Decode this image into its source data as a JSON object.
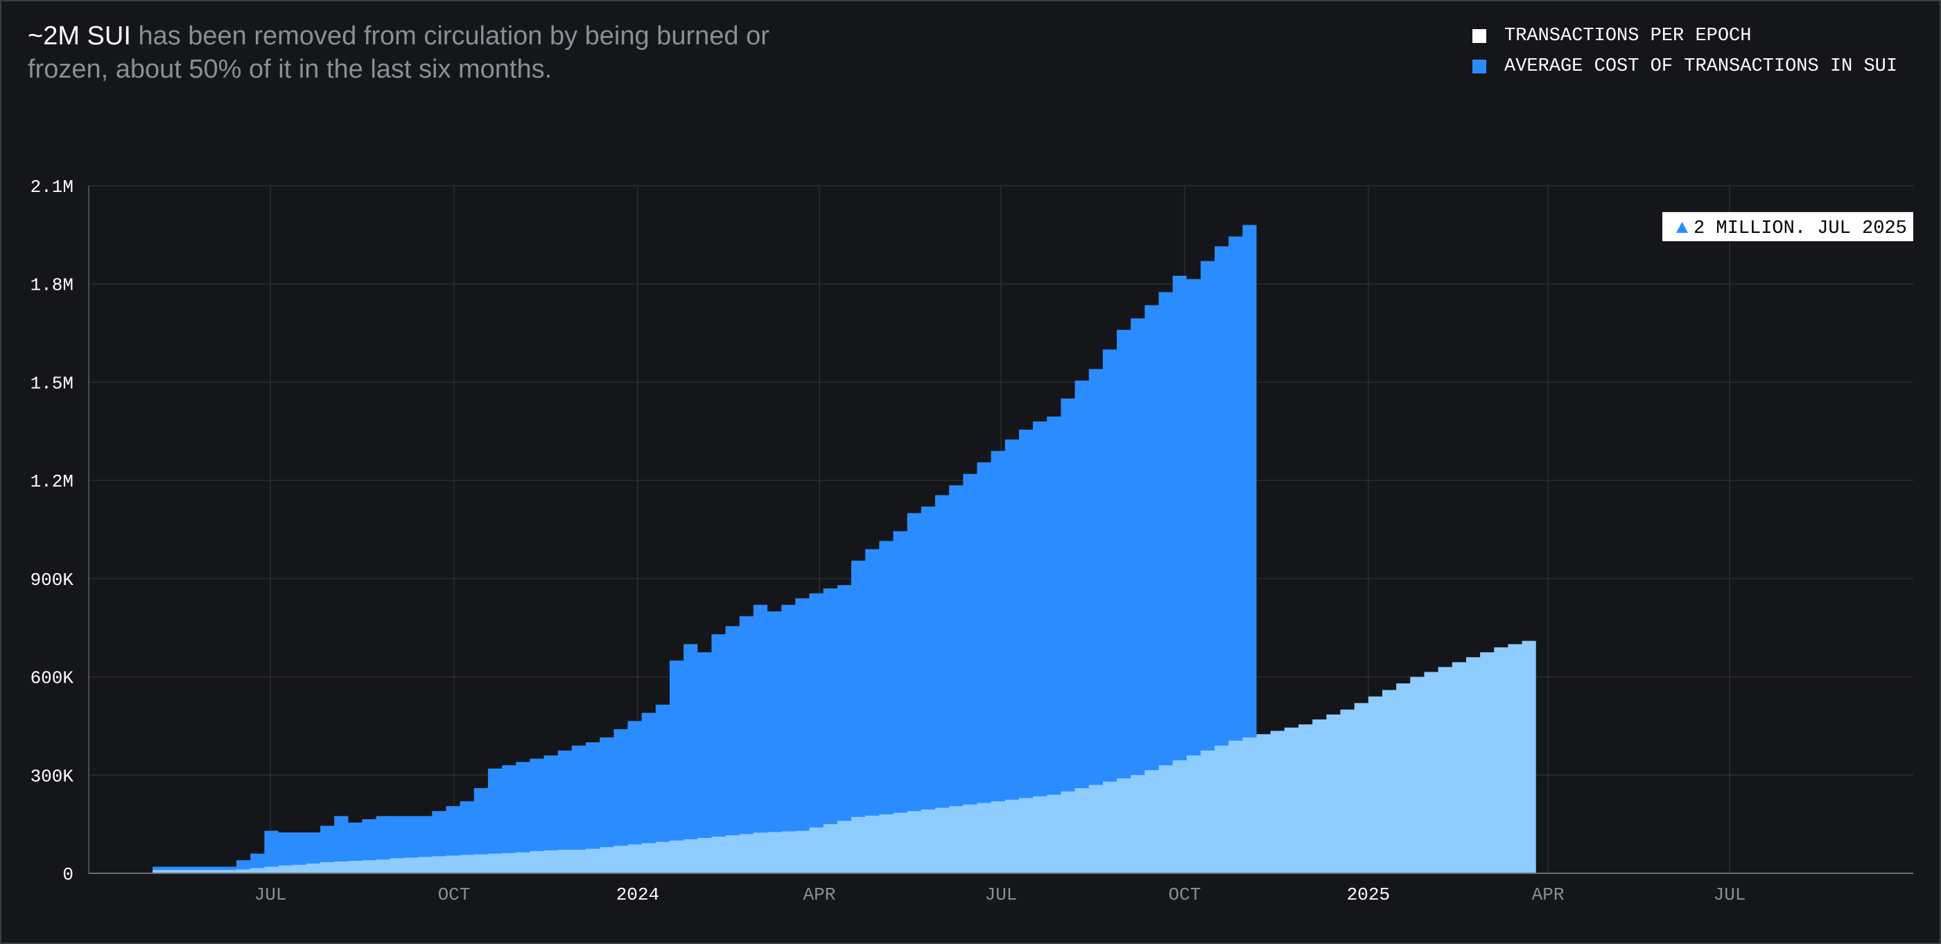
{
  "header": {
    "headline_highlight": "~2M SUI",
    "headline_rest": " has been removed from circulation by being burned or frozen, about 50% of it in the last six months."
  },
  "legend": [
    {
      "label": "TRANSACTIONS PER EPOCH",
      "color": "#ffffff"
    },
    {
      "label": "AVERAGE COST OF TRANSACTIONS IN SUI",
      "color": "#2b8cff"
    }
  ],
  "callout": {
    "text": "2 MILLION. JUL 2025",
    "icon": "triangle-up-icon"
  },
  "chart_data": {
    "type": "area",
    "title": "",
    "xlabel": "",
    "ylabel": "",
    "ylim": [
      0,
      2100000
    ],
    "y_ticks": [
      {
        "value": 0,
        "label": "0"
      },
      {
        "value": 300000,
        "label": "300K"
      },
      {
        "value": 600000,
        "label": "600K"
      },
      {
        "value": 900000,
        "label": "900K"
      },
      {
        "value": 1200000,
        "label": "1.2M"
      },
      {
        "value": 1500000,
        "label": "1.5M"
      },
      {
        "value": 1800000,
        "label": "1.8M"
      },
      {
        "value": 2100000,
        "label": "2.1M"
      }
    ],
    "x_ticks": [
      {
        "label": "JUL",
        "date": "2023-07-01",
        "emphasis": false
      },
      {
        "label": "OCT",
        "date": "2023-10-01",
        "emphasis": false
      },
      {
        "label": "2024",
        "date": "2024-01-01",
        "emphasis": true
      },
      {
        "label": "APR",
        "date": "2024-04-01",
        "emphasis": false
      },
      {
        "label": "JUL",
        "date": "2024-07-01",
        "emphasis": false
      },
      {
        "label": "OCT",
        "date": "2024-10-01",
        "emphasis": false
      },
      {
        "label": "2025",
        "date": "2025-01-01",
        "emphasis": true
      },
      {
        "label": "APR",
        "date": "2025-04-01",
        "emphasis": false
      },
      {
        "label": "JUL",
        "date": "2025-07-01",
        "emphasis": false
      }
    ],
    "x_range": [
      "2023-04-01",
      "2025-10-01"
    ],
    "grid": true,
    "legend_position": "top-right",
    "step_start": "2023-05-03",
    "step_days": 7,
    "series": [
      {
        "name": "TRANSACTIONS PER EPOCH",
        "color": "#8ecbff",
        "values": [
          10000,
          10000,
          10000,
          10000,
          10000,
          10000,
          12000,
          16000,
          20000,
          24000,
          26000,
          30000,
          34000,
          36000,
          38000,
          40000,
          42000,
          46000,
          48000,
          50000,
          52000,
          54000,
          56000,
          58000,
          60000,
          62000,
          64000,
          68000,
          70000,
          72000,
          72000,
          75000,
          80000,
          84000,
          88000,
          92000,
          96000,
          100000,
          104000,
          108000,
          112000,
          116000,
          120000,
          124000,
          126000,
          128000,
          130000,
          140000,
          150000,
          160000,
          172000,
          176000,
          180000,
          185000,
          190000,
          195000,
          200000,
          205000,
          210000,
          215000,
          220000,
          225000,
          230000,
          235000,
          240000,
          250000,
          260000,
          270000,
          280000,
          290000,
          300000,
          315000,
          330000,
          345000,
          360000,
          375000,
          390000,
          405000,
          415000,
          425000,
          435000,
          445000,
          455000,
          470000,
          485000,
          500000,
          520000,
          540000,
          560000,
          580000,
          600000,
          615000,
          630000,
          645000,
          660000,
          675000,
          690000,
          700000,
          710000
        ]
      },
      {
        "name": "AVERAGE COST OF TRANSACTIONS IN SUI",
        "color": "#2b8cff",
        "values": [
          20000,
          20000,
          20000,
          20000,
          20000,
          20000,
          40000,
          60000,
          130000,
          125000,
          125000,
          125000,
          145000,
          175000,
          155000,
          165000,
          175000,
          175000,
          175000,
          175000,
          190000,
          205000,
          220000,
          260000,
          320000,
          330000,
          340000,
          350000,
          360000,
          375000,
          390000,
          400000,
          415000,
          440000,
          465000,
          490000,
          515000,
          650000,
          700000,
          675000,
          730000,
          755000,
          785000,
          820000,
          800000,
          820000,
          840000,
          855000,
          870000,
          880000,
          955000,
          990000,
          1015000,
          1045000,
          1100000,
          1120000,
          1155000,
          1185000,
          1220000,
          1255000,
          1290000,
          1325000,
          1355000,
          1380000,
          1395000,
          1450000,
          1505000,
          1540000,
          1600000,
          1660000,
          1695000,
          1735000,
          1775000,
          1825000,
          1815000,
          1870000,
          1915000,
          1945000,
          1980000
        ]
      }
    ]
  }
}
